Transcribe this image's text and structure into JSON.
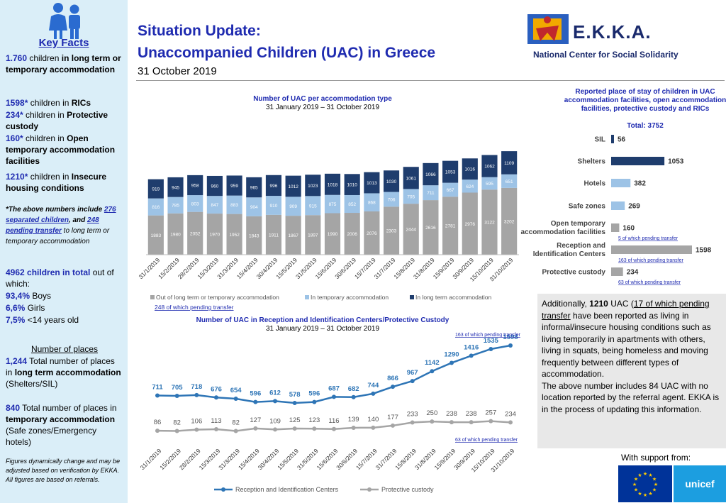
{
  "sidebar": {
    "key_facts_title": "Key Facts",
    "fact1_num": "1.760",
    "fact1_mid": " children ",
    "fact1_bold": "in long term",
    "fact1_rest": " or temporary accommodation",
    "ric_num": "1598*",
    "ric_mid": " children in ",
    "ric_bold": "RICs",
    "pc_num": "234*",
    "pc_mid": " children in ",
    "pc_bold": "Protective custody",
    "open_num": "160*",
    "open_mid": " children in ",
    "open_bold": "Open temporary accommodation facilities",
    "insec_num": "1210*",
    "insec_mid": " children in ",
    "insec_bold": "Insecure housing conditions",
    "note_a": "*The above numbers include ",
    "note_link1": "276 separated children",
    "note_b": ", and ",
    "note_link2": "248 pending transfer",
    "note_c": " to long term or temporary accommodation",
    "total_num": "4962",
    "total_bold": " children in total",
    "total_rest": " out of which:",
    "boys_num": "93,4%",
    "boys_label": " Boys",
    "girls_num": "6,6%",
    "girls_label": " Girls",
    "young_num": "7,5%",
    "young_label": " <14 years old",
    "places_title": "Number of places",
    "lt_num": "1,244",
    "lt_pre": " Total number of places in ",
    "lt_bold": "long term accommodation",
    "lt_rest": " (Shelters/SIL)",
    "tmp_num": "840",
    "tmp_pre": " Total number of places in ",
    "tmp_bold": "temporary accommodation",
    "tmp_rest": " (Safe zones/Emergency hotels)",
    "disclaimer": "Figures dynamically change and may be adjusted based on verification by EKKA. All figures are based on referrals."
  },
  "header": {
    "title_line1": "Situation Update:",
    "title_line2": "Unaccompanied Children (UAC) in Greece",
    "date": "31 October 2019",
    "logo_text": "E.K.K.A.",
    "logo_sub": "National Center for Social Solidarity"
  },
  "colors": {
    "navy": "#1f3d6d",
    "light_blue": "#9dc3e6",
    "grey": "#a5a5a5",
    "line_blue": "#2e75b6",
    "title_blue": "#1f2bb0"
  },
  "chart_data": [
    {
      "type": "bar",
      "stacked": true,
      "title": "Number of UAC per accommodation type",
      "subtitle": "31 January 2019 – 31 October 2019",
      "categories": [
        "31/1/2019",
        "15/2/2019",
        "28/2/2019",
        "15/3/2019",
        "31/3/2019",
        "15/4/2019",
        "30/4/2019",
        "15/5/2019",
        "31/5/2019",
        "15/6/2019",
        "30/6/2019",
        "15/7/2019",
        "31/7/2019",
        "15/8/2019",
        "31/8/2019",
        "15/9/2019",
        "30/9/2019",
        "15/10/2019",
        "31/10/2019"
      ],
      "series": [
        {
          "name": "Out of long term or temporary accommodation",
          "color": "#a5a5a5",
          "values": [
            1883,
            1980,
            2052,
            1970,
            1952,
            1843,
            1911,
            1867,
            1897,
            1990,
            2006,
            2076,
            2303,
            2444,
            2616,
            2781,
            2976,
            3122,
            3202
          ]
        },
        {
          "name": "In temporary accommodation",
          "color": "#9dc3e6",
          "values": [
            816,
            785,
            803,
            847,
            883,
            904,
            910,
            909,
            915,
            875,
            852,
            868,
            706,
            705,
            711,
            667,
            624,
            595,
            651
          ]
        },
        {
          "name": "In long term accommodation",
          "color": "#1f3d6d",
          "values": [
            919,
            945,
            958,
            960,
            959,
            965,
            996,
            1012,
            1023,
            1018,
            1010,
            1013,
            1030,
            1061,
            1066,
            1053,
            1016,
            1062,
            1109
          ]
        }
      ],
      "annotation": "248 of which pending transfer",
      "ylim": [
        0,
        5000
      ]
    },
    {
      "type": "bar",
      "orientation": "horizontal",
      "title": "Reported place of stay of children in UAC accommodation facilities, open accommodation facilities, protective custody and RICs",
      "total_label": "Total: 3752",
      "categories": [
        "SIL",
        "Shelters",
        "Hotels",
        "Safe zones",
        "Open temporary accommodation facilities",
        "Reception and Identification Centers",
        "Protective custody"
      ],
      "values": [
        56,
        1053,
        382,
        269,
        160,
        1598,
        234
      ],
      "colors": [
        "#1f3d6d",
        "#1f3d6d",
        "#9dc3e6",
        "#9dc3e6",
        "#a5a5a5",
        "#a5a5a5",
        "#a5a5a5"
      ],
      "notes": [
        "",
        "",
        "",
        "",
        "5 of which pending transfer",
        "163 of which pending transfer",
        "63 of which pending transfer"
      ],
      "xlim": [
        0,
        1598
      ]
    },
    {
      "type": "line",
      "title": "Number of UAC in Reception and Identification Centers/Protective Custody",
      "subtitle": "31 January 2019 – 31 October 2019",
      "categories": [
        "31/1/2019",
        "15/2/2019",
        "28/2/2019",
        "15/3/2019",
        "31/3/2019",
        "15/4/2019",
        "30/4/2019",
        "15/5/2019",
        "31/5/2019",
        "15/6/2019",
        "30/6/2019",
        "15/7/2019",
        "31/7/2019",
        "15/8/2019",
        "31/8/2019",
        "15/9/2019",
        "30/9/2019",
        "15/10/2019",
        "31/10/2019"
      ],
      "series": [
        {
          "name": "Reception and Identification Centers",
          "color": "#2e75b6",
          "values": [
            711,
            705,
            718,
            676,
            654,
            596,
            612,
            578,
            596,
            687,
            682,
            744,
            866,
            967,
            1142,
            1290,
            1416,
            1535,
            1598
          ]
        },
        {
          "name": "Protective custody",
          "color": "#a5a5a5",
          "values": [
            86,
            82,
            106,
            113,
            82,
            127,
            109,
            125,
            123,
            116,
            139,
            140,
            177,
            233,
            250,
            238,
            238,
            257,
            234
          ]
        }
      ],
      "annotations": [
        "163 of which pending transfer",
        "63 of which pending transfer"
      ],
      "ylim": [
        0,
        1700
      ]
    }
  ],
  "infobox": {
    "p1_a": "Additionally, ",
    "p1_num": "1210",
    "p1_b": " UAC (",
    "p1_link": "17 of which pending transfer",
    "p1_c": " have been reported as living in informal/insecure housing conditions such as living temporarily in apartments with others, living in squats, being homeless and moving frequently between different types of accommodation.",
    "p2": "The above number includes 84 UAC with no location reported by the referral agent. EKKA is in the process of updating this information."
  },
  "support": {
    "label": "With support from:",
    "unicef": "unicef"
  }
}
